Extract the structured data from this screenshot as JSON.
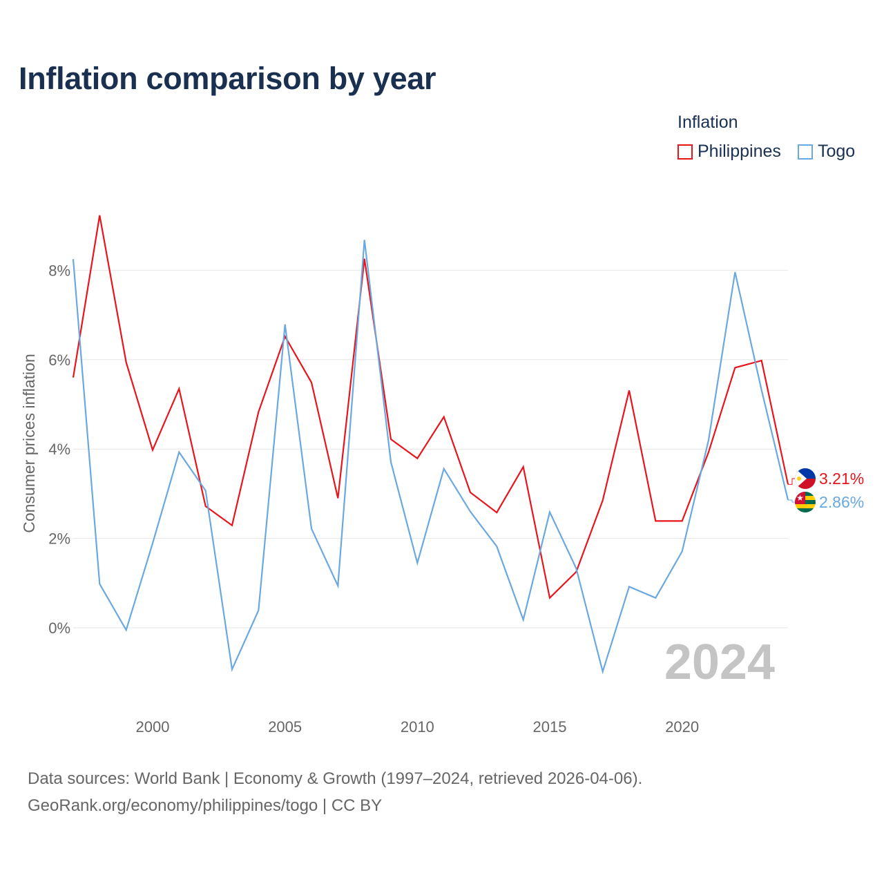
{
  "title": "Inflation comparison by year",
  "legend": {
    "title": "Inflation",
    "items": [
      {
        "label": "Philippines",
        "color": "#e8141c"
      },
      {
        "label": "Togo",
        "color": "#6aa8e0"
      }
    ]
  },
  "source": {
    "line1": "Data sources: World Bank | Economy & Growth (1997–2024, retrieved 2026-04-06).",
    "line2": "GeoRank.org/economy/philippines/togo | CC BY"
  },
  "chart_data": {
    "type": "line",
    "title": "Inflation comparison by year",
    "xlabel": "",
    "ylabel": "Consumer prices inflation",
    "x": [
      1997,
      1998,
      1999,
      2000,
      2001,
      2002,
      2003,
      2004,
      2005,
      2006,
      2007,
      2008,
      2009,
      2010,
      2011,
      2012,
      2013,
      2014,
      2015,
      2016,
      2017,
      2018,
      2019,
      2020,
      2021,
      2022,
      2023,
      2024
    ],
    "xlim": [
      1997,
      2024
    ],
    "ylim": [
      -1.8,
      9.5
    ],
    "x_ticks": [
      2000,
      2005,
      2010,
      2015,
      2020
    ],
    "x_tick_labels": [
      "2000",
      "2005",
      "2010",
      "2015",
      "2020"
    ],
    "y_ticks": [
      0,
      2,
      4,
      6,
      8
    ],
    "y_tick_labels": [
      "0%",
      "2%",
      "4%",
      "6%",
      "8%"
    ],
    "grid": true,
    "watermark": "2024",
    "series": [
      {
        "name": "Philippines",
        "color": "#e8141c",
        "end_label": "3.21%",
        "values": [
          5.6,
          9.23,
          5.94,
          3.98,
          5.35,
          2.72,
          2.29,
          4.83,
          6.52,
          5.49,
          2.9,
          8.26,
          4.22,
          3.79,
          4.72,
          3.03,
          2.58,
          3.6,
          0.67,
          1.25,
          2.85,
          5.31,
          2.39,
          2.39,
          3.93,
          5.82,
          5.98,
          3.21
        ]
      },
      {
        "name": "Togo",
        "color": "#6aa8e0",
        "end_label": "2.86%",
        "values": [
          8.25,
          0.98,
          -0.05,
          1.89,
          3.93,
          3.07,
          -0.93,
          0.39,
          6.79,
          2.22,
          0.94,
          8.68,
          3.71,
          1.45,
          3.56,
          2.6,
          1.82,
          0.18,
          2.59,
          1.33,
          -0.98,
          0.92,
          0.67,
          1.71,
          4.2,
          7.96,
          5.32,
          2.86
        ]
      }
    ]
  }
}
